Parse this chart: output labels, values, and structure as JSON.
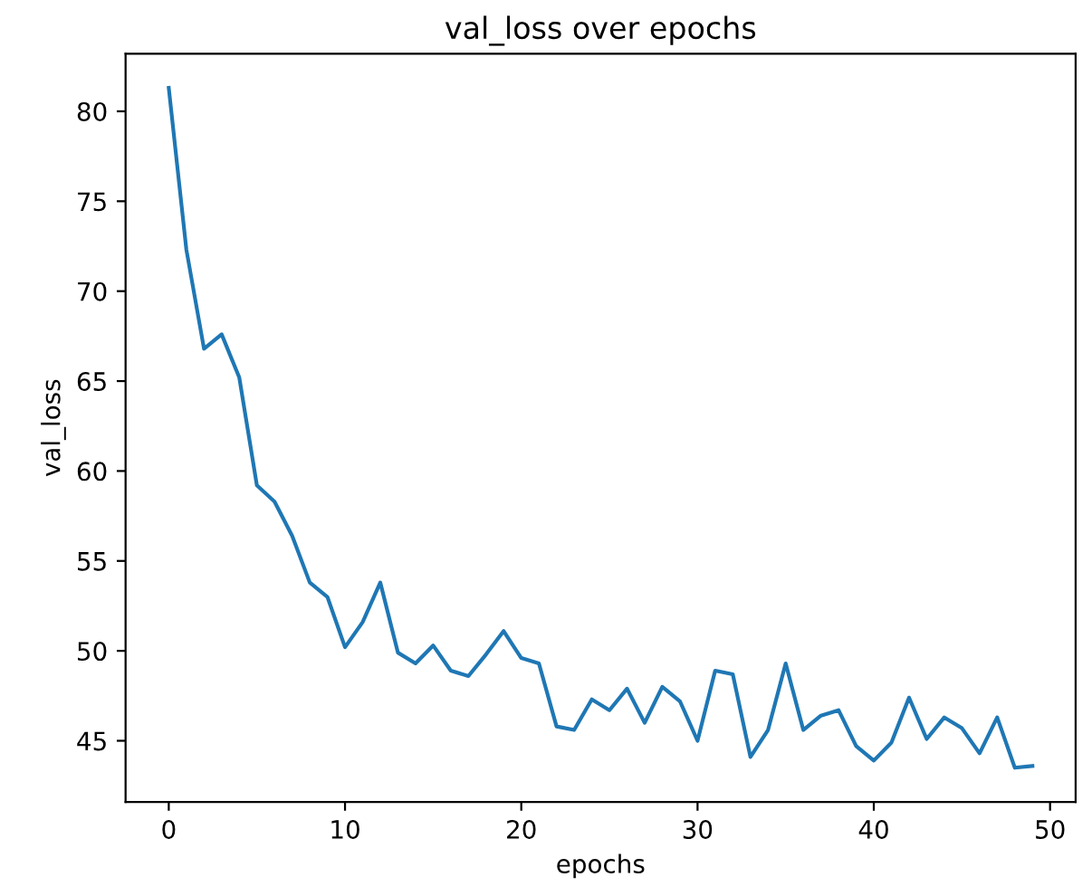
{
  "chart_data": {
    "type": "line",
    "title": "val_loss over epochs",
    "xlabel": "epochs",
    "ylabel": "val_loss",
    "x": [
      0,
      1,
      2,
      3,
      4,
      5,
      6,
      7,
      8,
      9,
      10,
      11,
      12,
      13,
      14,
      15,
      16,
      17,
      18,
      19,
      20,
      21,
      22,
      23,
      24,
      25,
      26,
      27,
      28,
      29,
      30,
      31,
      32,
      33,
      34,
      35,
      36,
      37,
      38,
      39,
      40,
      41,
      42,
      43,
      44,
      45,
      46,
      47,
      48,
      49
    ],
    "series": [
      {
        "color": "#1f77b4",
        "values": [
          81.3,
          72.3,
          66.8,
          67.6,
          65.2,
          59.2,
          58.3,
          56.4,
          53.8,
          53.0,
          50.2,
          51.6,
          53.8,
          49.9,
          49.3,
          50.3,
          48.9,
          48.6,
          49.8,
          51.1,
          49.6,
          49.3,
          45.8,
          45.6,
          47.3,
          46.7,
          47.9,
          46.0,
          48.0,
          47.2,
          45.0,
          48.9,
          48.7,
          44.1,
          45.6,
          49.3,
          45.6,
          46.4,
          46.7,
          44.7,
          43.9,
          44.9,
          47.4,
          45.1,
          46.3,
          45.7,
          44.3,
          46.3,
          43.5,
          43.6
        ]
      }
    ],
    "xlim": [
      -2.45,
      51.45
    ],
    "ylim": [
      41.6,
      83.2
    ],
    "xticks": [
      0,
      10,
      20,
      30,
      40,
      50
    ],
    "yticks": [
      45,
      50,
      55,
      60,
      65,
      70,
      75,
      80
    ],
    "grid": false,
    "marker": "none",
    "line_style": "solid"
  }
}
